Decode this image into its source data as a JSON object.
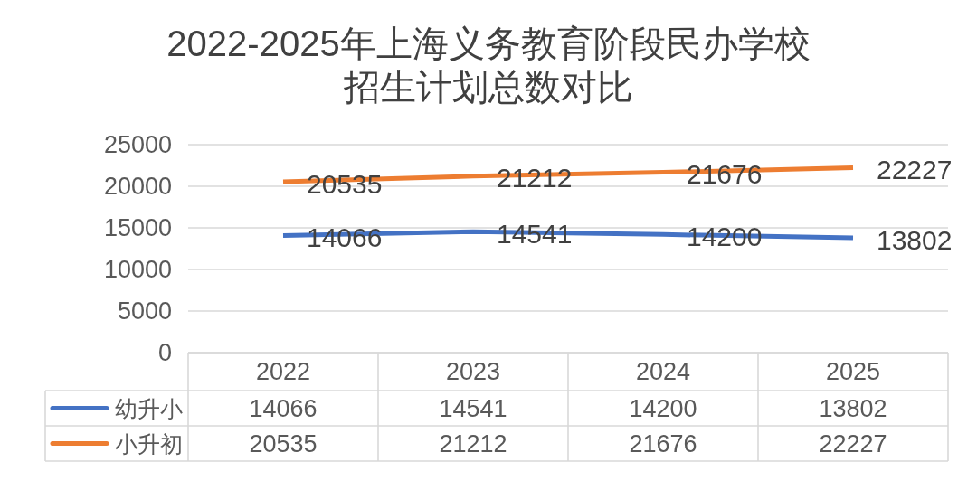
{
  "chart_data": {
    "type": "line",
    "title": "2022-2025年上海义务教育阶段民办学校招生计划总数对比",
    "categories": [
      "2022",
      "2023",
      "2024",
      "2025"
    ],
    "series": [
      {
        "name": "幼升小",
        "color": "#4472c4",
        "values": [
          14066,
          14541,
          14200,
          13802
        ]
      },
      {
        "name": "小升初",
        "color": "#ed7d31",
        "values": [
          20535,
          21212,
          21676,
          22227
        ]
      }
    ],
    "ylim": [
      0,
      25000
    ],
    "yticks": [
      0,
      5000,
      10000,
      15000,
      20000,
      25000
    ],
    "annotations": [
      {
        "text": "14066",
        "x": "2022",
        "y": 14066
      },
      {
        "text": "14541",
        "x": "2023",
        "y": 14541
      },
      {
        "text": "14200",
        "x": "2024",
        "y": 14200
      },
      {
        "text": "13802",
        "x": "2025",
        "y": 13802
      },
      {
        "text": "20535",
        "x": "2022",
        "y": 20535
      },
      {
        "text": "21212",
        "x": "2023",
        "y": 21212
      },
      {
        "text": "21676",
        "x": "2024",
        "y": 21676
      },
      {
        "text": "22227",
        "x": "2025",
        "y": 22227
      }
    ],
    "grid": "y",
    "legend": "bottom",
    "data_labels": true,
    "line_style": "solid"
  }
}
